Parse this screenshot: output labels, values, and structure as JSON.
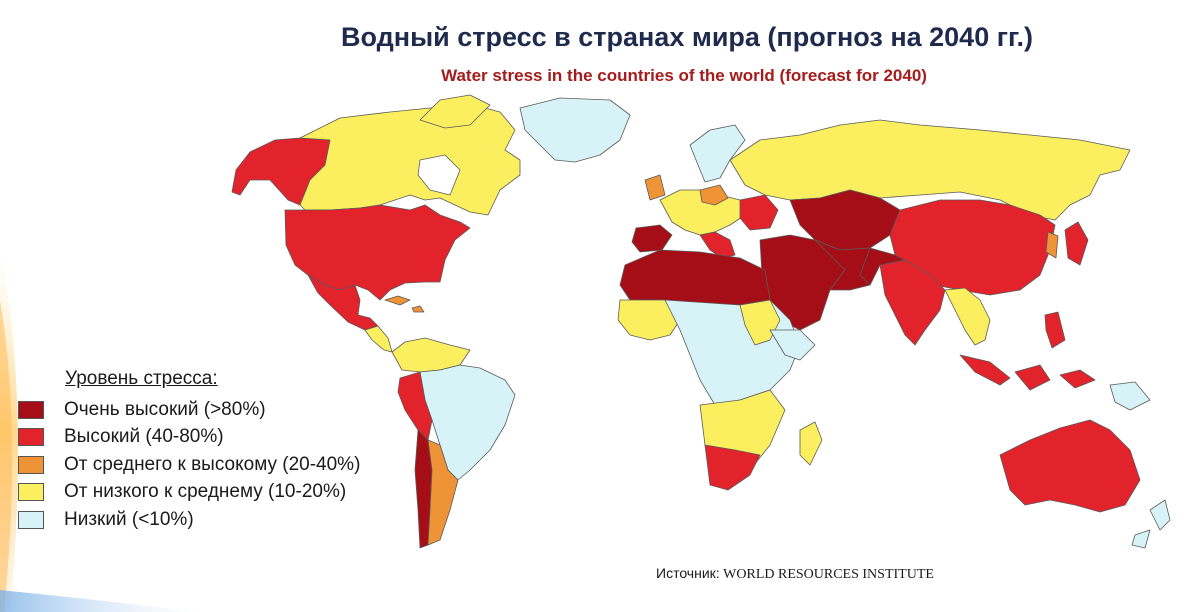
{
  "title": "Водный стресс в странах мира (прогноз на 2040 гг.)",
  "subtitle": "Water stress in the countries of the world (forecast for 2040)",
  "legend": {
    "title": "Уровень стресса:",
    "items": [
      {
        "label": "Очень высокий (>80%)",
        "color": "#a50e16"
      },
      {
        "label": "Высокий (40-80%)",
        "color": "#e3232b"
      },
      {
        "label": "От среднего к высокому (20-40%)",
        "color": "#ef9337"
      },
      {
        "label": "От низкого к среднему (10-20%)",
        "color": "#fbef5f"
      },
      {
        "label": "Низкий (<10%)",
        "color": "#d7f3f8"
      }
    ]
  },
  "source": {
    "label": "Источник:",
    "value": "WORLD RESOURCES INSTITUTE"
  },
  "colors": {
    "very_high": "#a50e16",
    "high": "#e3232b",
    "medium_high": "#ef9337",
    "low_medium": "#fbef5f",
    "low": "#d7f3f8",
    "border": "#5a5a5a",
    "title": "#1f2a4d",
    "subtitle": "#a61c1c"
  }
}
